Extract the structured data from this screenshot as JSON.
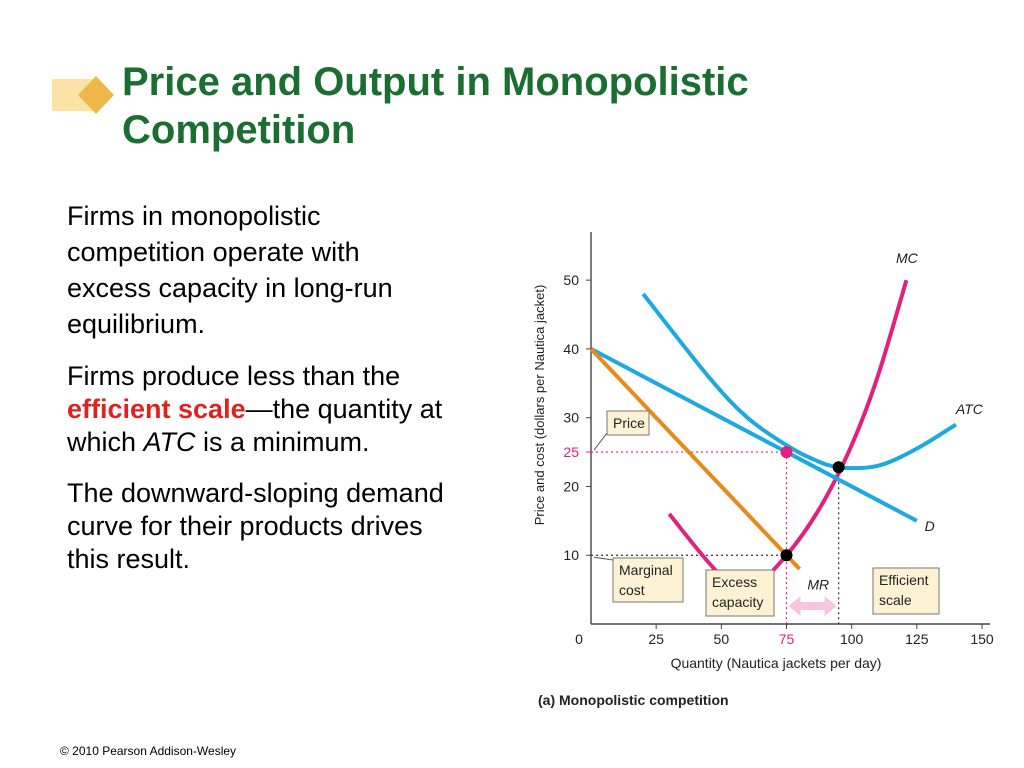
{
  "slide": {
    "title": "Price and Output in Monopolistic Competition",
    "accent_color": "#1a6e32",
    "footer": "© 2010 Pearson Addison-Wesley"
  },
  "body": {
    "p1": "Firms in monopolistic competition operate with excess capacity in long-run equilibrium.",
    "p2_before": "Firms produce less than the ",
    "p2_highlight": "efficient scale",
    "p2_middle": "—the quantity at which ",
    "p2_italic": "ATC",
    "p2_after": " is a minimum.",
    "p3": "The downward-sloping demand curve for their products drives this result."
  },
  "chart_data": {
    "type": "line",
    "caption": "(a) Monopolistic competition",
    "xlabel": "Quantity (Nautica jackets per day)",
    "ylabel": "Price and cost (dollars per Nautica jacket)",
    "xlim": [
      0,
      150
    ],
    "ylim": [
      0,
      57
    ],
    "x_ticks": [
      0,
      25,
      50,
      75,
      100,
      125,
      150
    ],
    "y_ticks": [
      10,
      20,
      30,
      40,
      50
    ],
    "highlight_ticks": {
      "x": 75,
      "y": 25,
      "color": "#e0227e"
    },
    "series": [
      {
        "name": "MC",
        "color": "#e0227e",
        "x": [
          30,
          50,
          62,
          75,
          88,
          100,
          110,
          121
        ],
        "y": [
          16,
          7,
          5.5,
          10,
          17,
          26,
          36,
          50
        ]
      },
      {
        "name": "ATC",
        "color": "#1aa9e0",
        "x": [
          20,
          45,
          60,
          75,
          85,
          95,
          110,
          125,
          140
        ],
        "y": [
          48,
          36,
          30,
          26,
          24,
          22.8,
          23,
          25.5,
          29
        ]
      },
      {
        "name": "D",
        "color": "#1aa9e0",
        "x": [
          0,
          125
        ],
        "y": [
          40,
          15
        ]
      },
      {
        "name": "MR",
        "color": "#e8891a",
        "x": [
          0,
          80
        ],
        "y": [
          40,
          8
        ]
      }
    ],
    "points": [
      {
        "x": 75,
        "y": 25,
        "color": "#e0227e"
      },
      {
        "x": 75,
        "y": 10,
        "color": "#000000"
      },
      {
        "x": 95,
        "y": 22.8,
        "color": "#000000"
      }
    ],
    "annotations": [
      {
        "text": "Price"
      },
      {
        "text": "Marginal cost"
      },
      {
        "text": "Excess capacity"
      },
      {
        "text": "Efficient scale"
      }
    ],
    "excess_capacity_range": [
      75,
      95
    ]
  }
}
